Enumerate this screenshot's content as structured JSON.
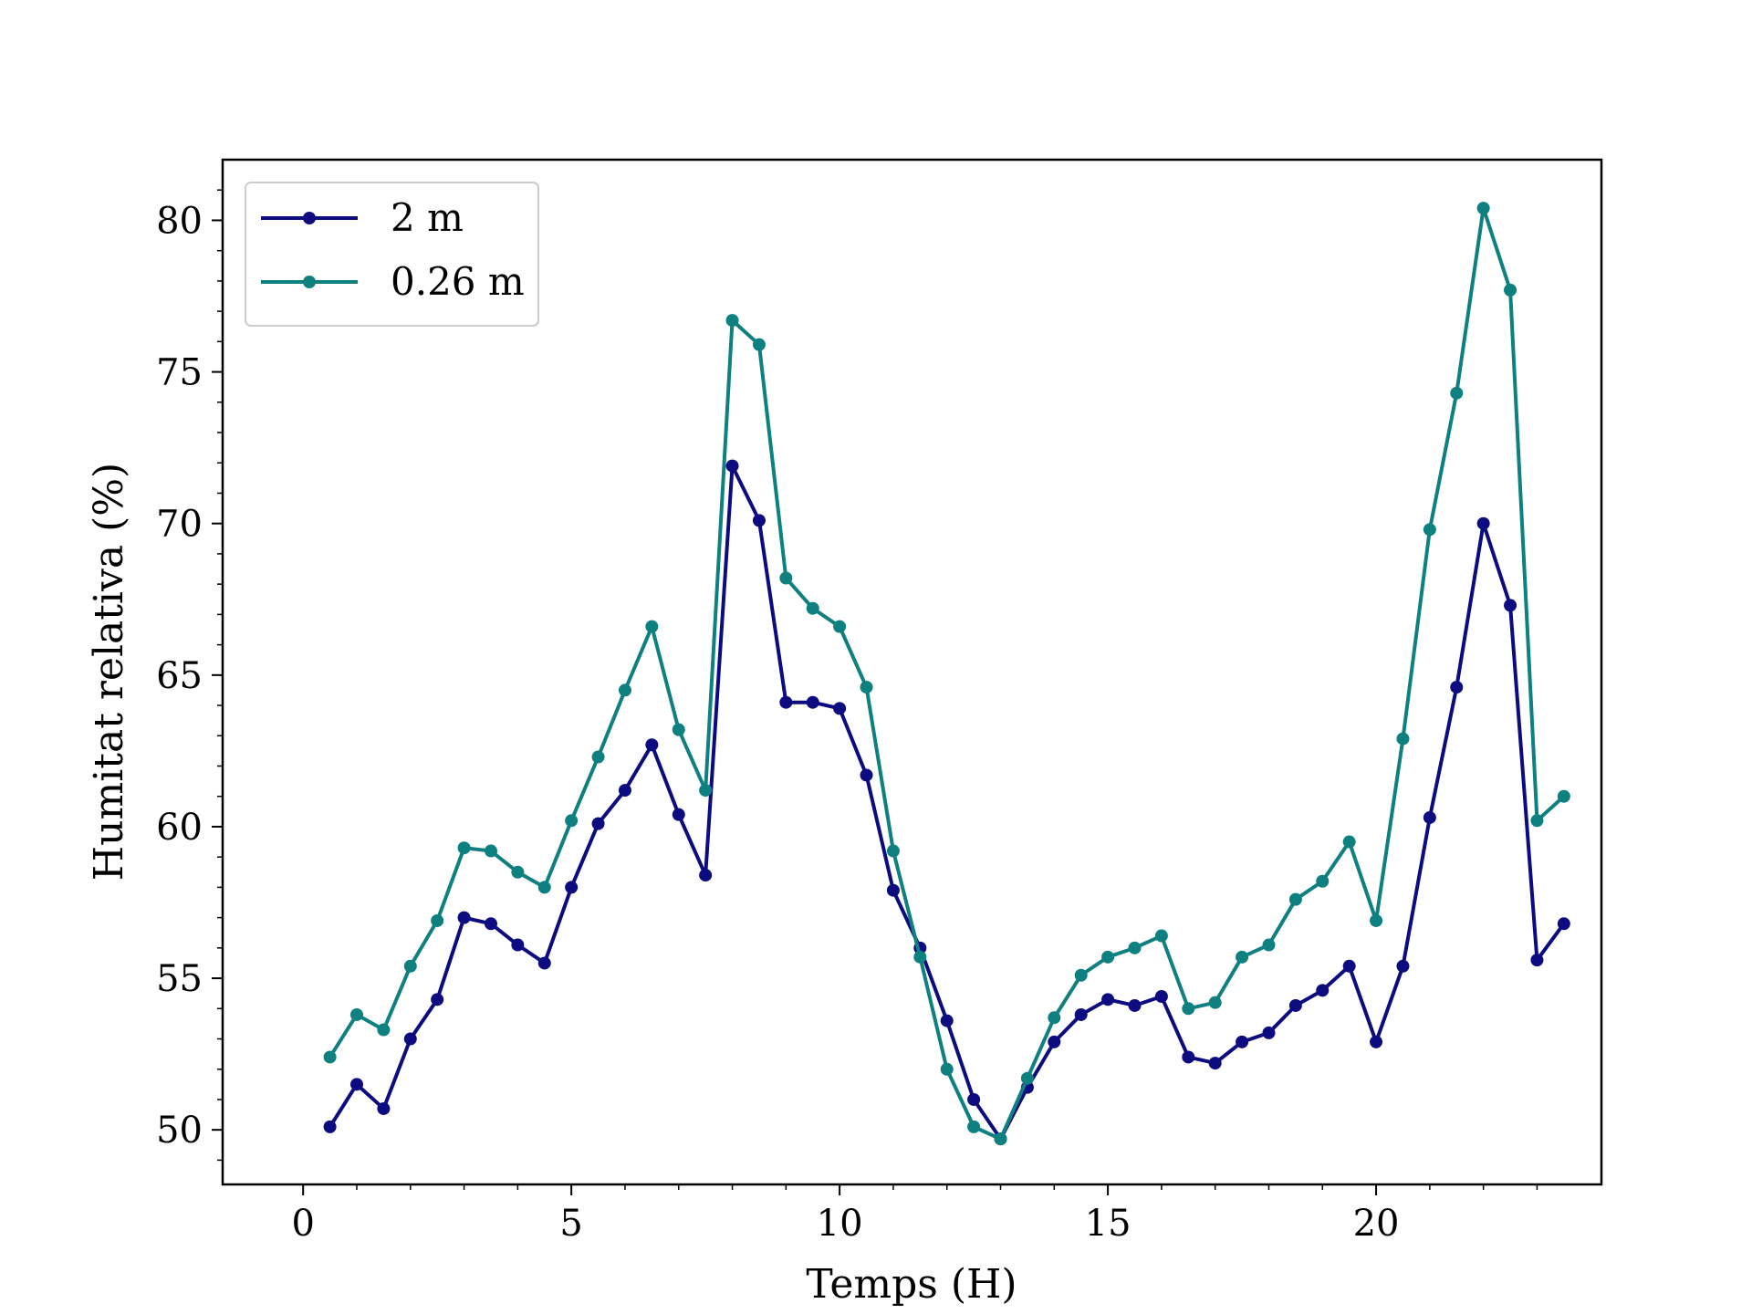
{
  "chart_data": {
    "type": "line",
    "xlabel": "Temps (H)",
    "ylabel": "Humitat relativa (%)",
    "xlim": [
      -1.5,
      24.2
    ],
    "ylim": [
      48.2,
      82.0
    ],
    "xticks": [
      0,
      5,
      10,
      15,
      20
    ],
    "yticks": [
      50,
      55,
      60,
      65,
      70,
      75,
      80
    ],
    "grid": false,
    "legend_position": "top-left",
    "x": [
      0.5,
      1.0,
      1.5,
      2.0,
      2.5,
      3.0,
      3.5,
      4.0,
      4.5,
      5.0,
      5.5,
      6.0,
      6.5,
      7.0,
      7.5,
      8.0,
      8.5,
      9.0,
      9.5,
      10.0,
      10.5,
      11.0,
      11.5,
      12.0,
      12.5,
      13.0,
      13.5,
      14.0,
      14.5,
      15.0,
      15.5,
      16.0,
      16.5,
      17.0,
      17.5,
      18.0,
      18.5,
      19.0,
      19.5,
      20.0,
      20.5,
      21.0,
      21.5,
      22.0,
      22.5,
      23.0,
      23.5
    ],
    "series": [
      {
        "name": "2 m",
        "color": "#0c0c80",
        "values": [
          50.1,
          51.5,
          50.7,
          53.0,
          54.3,
          57.0,
          56.8,
          56.1,
          55.5,
          58.0,
          60.1,
          61.2,
          62.7,
          60.4,
          58.4,
          71.9,
          70.1,
          64.1,
          64.1,
          63.9,
          61.7,
          57.9,
          56.0,
          53.6,
          51.0,
          49.7,
          51.4,
          52.9,
          53.8,
          54.3,
          54.1,
          54.4,
          52.4,
          52.2,
          52.9,
          53.2,
          54.1,
          54.6,
          55.4,
          52.9,
          55.4,
          60.3,
          64.6,
          70.0,
          67.3,
          55.6,
          56.8
        ]
      },
      {
        "name": "0.26 m",
        "color": "#0e8080",
        "values": [
          52.4,
          53.8,
          53.3,
          55.4,
          56.9,
          59.3,
          59.2,
          58.5,
          58.0,
          60.2,
          62.3,
          64.5,
          66.6,
          63.2,
          61.2,
          76.7,
          75.9,
          68.2,
          67.2,
          66.6,
          64.6,
          59.2,
          55.7,
          52.0,
          50.1,
          49.7,
          51.7,
          53.7,
          55.1,
          55.7,
          56.0,
          56.4,
          54.0,
          54.2,
          55.7,
          56.1,
          57.6,
          58.2,
          59.5,
          56.9,
          62.9,
          69.8,
          74.3,
          80.4,
          77.7,
          60.2,
          61.0
        ]
      }
    ]
  }
}
